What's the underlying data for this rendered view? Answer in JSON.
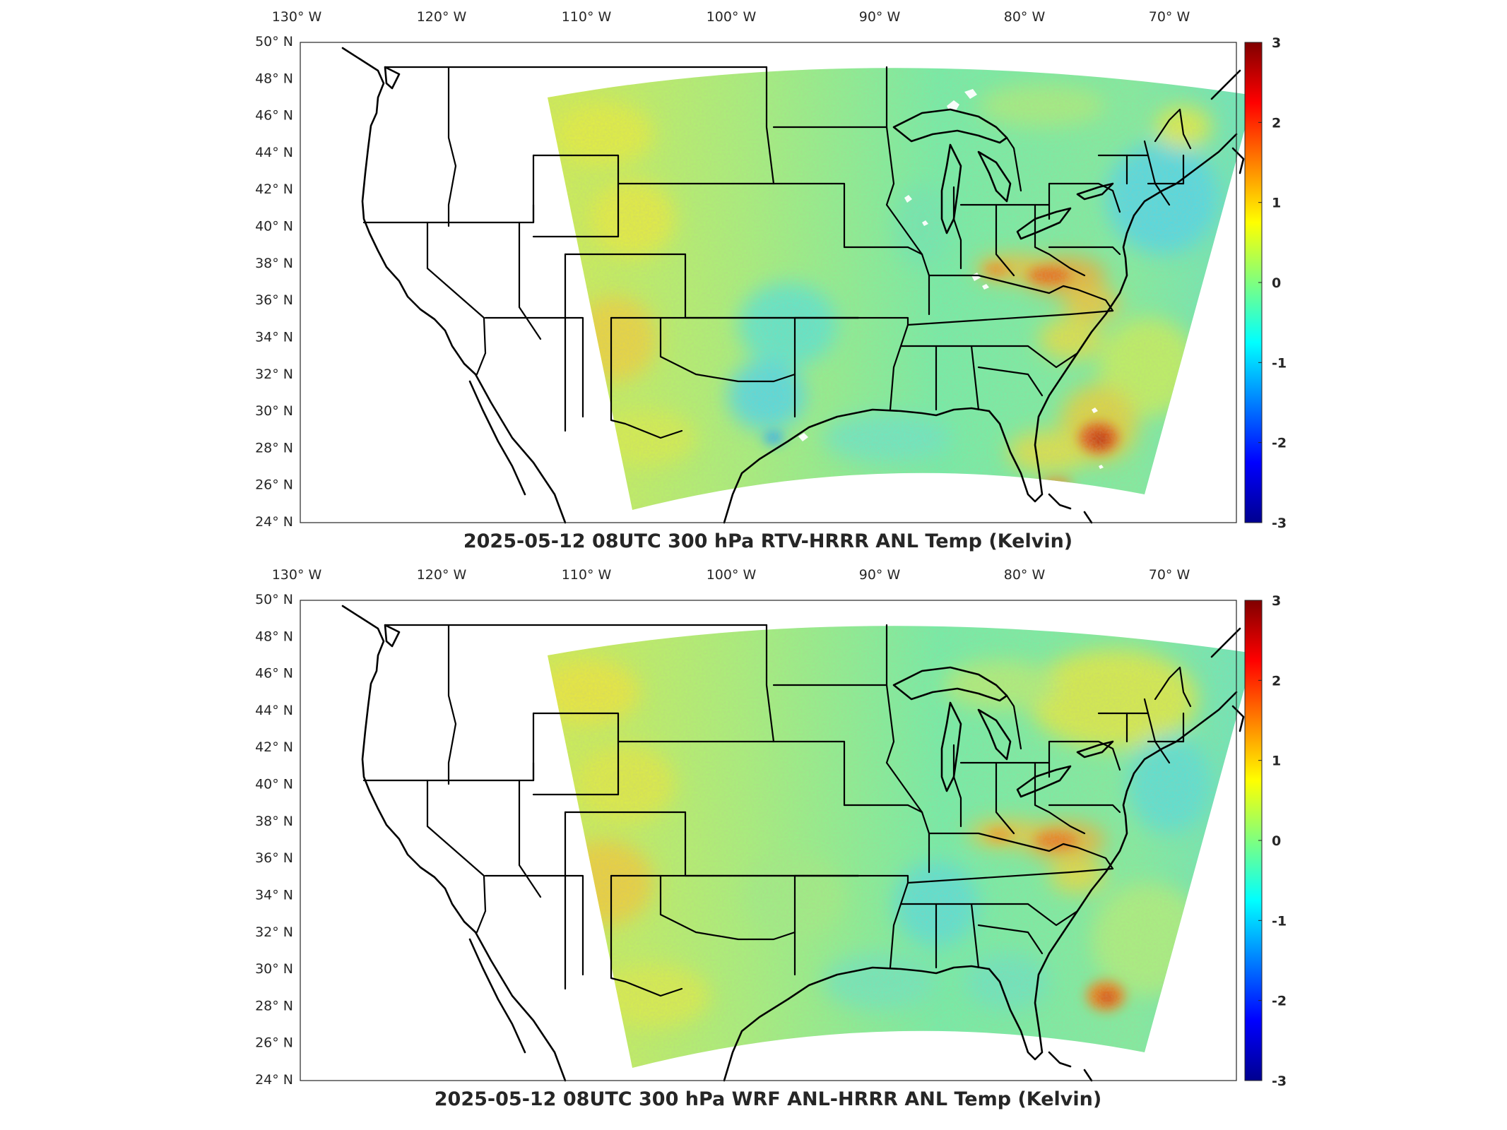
{
  "panels": [
    {
      "title": "2025-05-12 08UTC 300 hPa RTV-HRRR ANL Temp (Kelvin)",
      "variant": "rtv",
      "lon_ticks": [
        "130° W",
        "120° W",
        "110° W",
        "100° W",
        "90° W",
        "80° W",
        "70° W"
      ],
      "lat_ticks": [
        "50° N",
        "48° N",
        "46° N",
        "44° N",
        "42° N",
        "40° N",
        "38° N",
        "36° N",
        "34° N",
        "32° N",
        "30° N",
        "28° N",
        "26° N",
        "24° N"
      ],
      "colorbar": {
        "min": -3,
        "max": 3,
        "tick_labels": [
          "3",
          "2",
          "1",
          "0",
          "-1",
          "-2",
          "-3"
        ]
      }
    },
    {
      "title": "2025-05-12 08UTC 300 hPa WRF ANL-HRRR ANL Temp (Kelvin)",
      "variant": "wrf",
      "lon_ticks": [
        "130° W",
        "120° W",
        "110° W",
        "100° W",
        "90° W",
        "80° W",
        "70° W"
      ],
      "lat_ticks": [
        "50° N",
        "48° N",
        "46° N",
        "44° N",
        "42° N",
        "40° N",
        "38° N",
        "36° N",
        "34° N",
        "32° N",
        "30° N",
        "28° N",
        "26° N",
        "24° N"
      ],
      "colorbar": {
        "min": -3,
        "max": 3,
        "tick_labels": [
          "3",
          "2",
          "1",
          "0",
          "-1",
          "-2",
          "-3"
        ]
      }
    }
  ],
  "colormap": "jet",
  "colors": {
    "jet_low": "#00008f",
    "jet_mid": "#7fff7f",
    "jet_high": "#800000",
    "background": "#ffffff",
    "boundaries": "#000000"
  }
}
